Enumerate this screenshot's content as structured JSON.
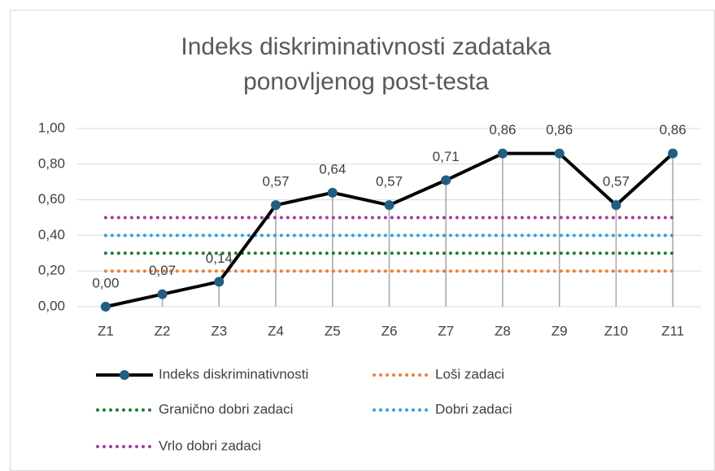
{
  "chart_data": {
    "type": "line",
    "title": "Indeks diskriminativnosti zadataka ponovljenog post-testa",
    "categories": [
      "Z1",
      "Z2",
      "Z3",
      "Z4",
      "Z5",
      "Z6",
      "Z7",
      "Z8",
      "Z9",
      "Z10",
      "Z11"
    ],
    "series": [
      {
        "name": "Indeks diskriminativnosti",
        "color": "#000000",
        "marker_color": "#1f5f80",
        "values": [
          0,
          0.07,
          0.14,
          0.57,
          0.64,
          0.57,
          0.71,
          0.86,
          0.86,
          0.57,
          0.86
        ],
        "value_labels": [
          "0,00",
          "0,07",
          "0,14",
          "0,57",
          "0,64",
          "0,57",
          "0,71",
          "0,86",
          "0,86",
          "0,57",
          "0,86"
        ]
      },
      {
        "name": "Loši zadaci",
        "color": "#ED7D31",
        "values": [
          0.2,
          0.2,
          0.2,
          0.2,
          0.2,
          0.2,
          0.2,
          0.2,
          0.2,
          0.2,
          0.2
        ]
      },
      {
        "name": "Granično dobri zadaci",
        "color": "#1f7a36",
        "values": [
          0.3,
          0.3,
          0.3,
          0.3,
          0.3,
          0.3,
          0.3,
          0.3,
          0.3,
          0.3,
          0.3
        ]
      },
      {
        "name": "Dobri zadaci",
        "color": "#2EA3D8",
        "values": [
          0.4,
          0.4,
          0.4,
          0.4,
          0.4,
          0.4,
          0.4,
          0.4,
          0.4,
          0.4,
          0.4
        ]
      },
      {
        "name": "Vrlo dobri zadaci",
        "color": "#A23C9E",
        "values": [
          0.5,
          0.5,
          0.5,
          0.5,
          0.5,
          0.5,
          0.5,
          0.5,
          0.5,
          0.5,
          0.5
        ]
      }
    ],
    "ylim": [
      0,
      1
    ],
    "yticks": [
      {
        "value": 0,
        "label": "0,00"
      },
      {
        "value": 0.2,
        "label": "0,20"
      },
      {
        "value": 0.4,
        "label": "0,40"
      },
      {
        "value": 0.6,
        "label": "0,60"
      },
      {
        "value": 0.8,
        "label": "0,80"
      },
      {
        "value": 1,
        "label": "1,00"
      }
    ],
    "grid": true,
    "legend": "bottom"
  }
}
